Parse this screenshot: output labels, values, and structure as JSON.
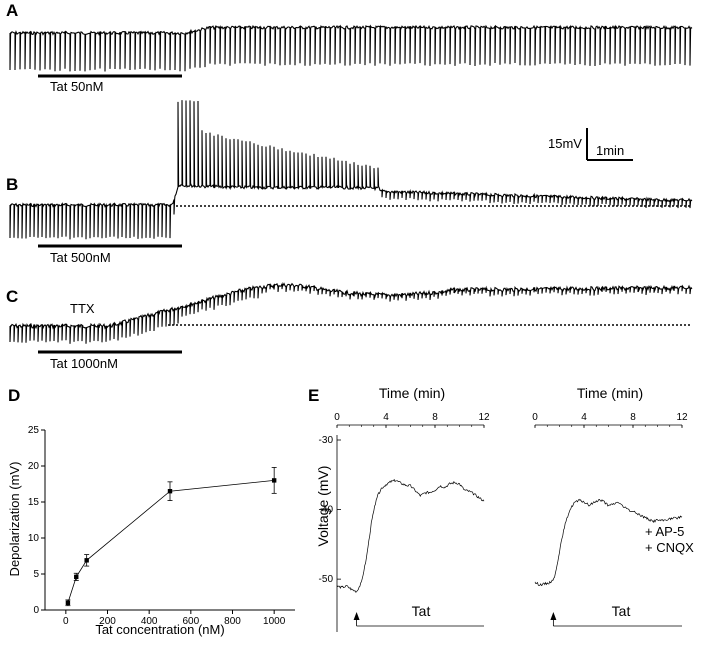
{
  "panels": {
    "A": {
      "letter": "A",
      "bar_label": "Tat 50nM"
    },
    "B": {
      "letter": "B",
      "bar_label": "Tat 500nM",
      "scale_bar_voltage": "15mV",
      "scale_bar_time": "1min"
    },
    "C": {
      "letter": "C",
      "annotation": "TTX",
      "bar_label": "Tat 1000nM"
    },
    "D": {
      "letter": "D"
    },
    "E": {
      "letter": "E",
      "ylabel": "Voltage (mV)",
      "left_plot": {
        "xlabel": "Time (min)",
        "tat_label": "Tat"
      },
      "right_plot": {
        "xlabel": "Time (min)",
        "tat_label": "Tat",
        "annotation_1": "+ AP-5",
        "annotation_2": "+ CNQX"
      }
    }
  },
  "chart_data": [
    {
      "type": "line",
      "panel": "D",
      "xlabel": "Tat concentration (nM)",
      "ylabel": "Depolarization (mV)",
      "xlim": [
        -100,
        1100
      ],
      "ylim": [
        0,
        25
      ],
      "xticks": [
        0,
        200,
        400,
        600,
        800,
        1000
      ],
      "yticks": [
        0,
        5,
        10,
        15,
        20,
        25
      ],
      "x": [
        10,
        50,
        100,
        500,
        1000
      ],
      "y": [
        1,
        4.6,
        6.9,
        16.5,
        18
      ],
      "err": [
        0.4,
        0.5,
        0.8,
        1.3,
        1.8
      ]
    },
    {
      "type": "line",
      "panel": "E-left",
      "xlabel": "Time (min)",
      "ylabel": "Voltage (mV)",
      "xlim": [
        0,
        12
      ],
      "ylim": [
        -53,
        -30
      ],
      "xticks": [
        0,
        4,
        8,
        12
      ],
      "yticks": [
        -30,
        -40,
        -50
      ],
      "tat_start_min": 1.6,
      "x": [
        0,
        0.4,
        0.8,
        1.2,
        1.6,
        2.0,
        2.4,
        2.8,
        3.2,
        3.6,
        4.0,
        4.4,
        4.8,
        5.2,
        5.6,
        6.0,
        6.4,
        6.8,
        7.2,
        7.6,
        8.0,
        8.4,
        8.8,
        9.2,
        9.6,
        10.0,
        10.4,
        10.8,
        11.2,
        11.6,
        12.0
      ],
      "y": [
        -51,
        -51.2,
        -51,
        -51.5,
        -51.8,
        -50.5,
        -47,
        -42,
        -38.5,
        -37,
        -36.4,
        -36,
        -35.8,
        -36.2,
        -36.5,
        -36.6,
        -37.3,
        -38,
        -37.6,
        -37.5,
        -37.2,
        -36.6,
        -36.8,
        -36.3,
        -36.1,
        -36.3,
        -37.2,
        -37.4,
        -37.8,
        -38.3,
        -38.8
      ]
    },
    {
      "type": "line",
      "panel": "E-right",
      "xlabel": "Time (min)",
      "xlim": [
        0,
        12
      ],
      "ylim": [
        -53,
        -30
      ],
      "xticks": [
        0,
        4,
        8,
        12
      ],
      "tat_start_min": 1.5,
      "x": [
        0,
        0.4,
        0.8,
        1.2,
        1.6,
        2.0,
        2.4,
        2.8,
        3.2,
        3.6,
        4.0,
        4.4,
        4.8,
        5.2,
        5.6,
        6.0,
        6.4,
        6.8,
        7.2,
        7.6,
        8.0,
        8.4,
        8.8,
        9.2,
        9.6,
        10.0,
        10.4,
        10.8,
        11.2,
        11.6,
        12.0
      ],
      "y": [
        -50.5,
        -50.8,
        -50.7,
        -50.5,
        -49.8,
        -46,
        -42.5,
        -40.2,
        -39,
        -38.7,
        -38.9,
        -39.4,
        -39,
        -38.6,
        -38.8,
        -39.5,
        -39.2,
        -38.9,
        -39.6,
        -40,
        -40.3,
        -40.6,
        -41,
        -41.3,
        -41.7,
        -41.5,
        -41.6,
        -41.4,
        -41.3,
        -41.2,
        -41
      ]
    }
  ]
}
